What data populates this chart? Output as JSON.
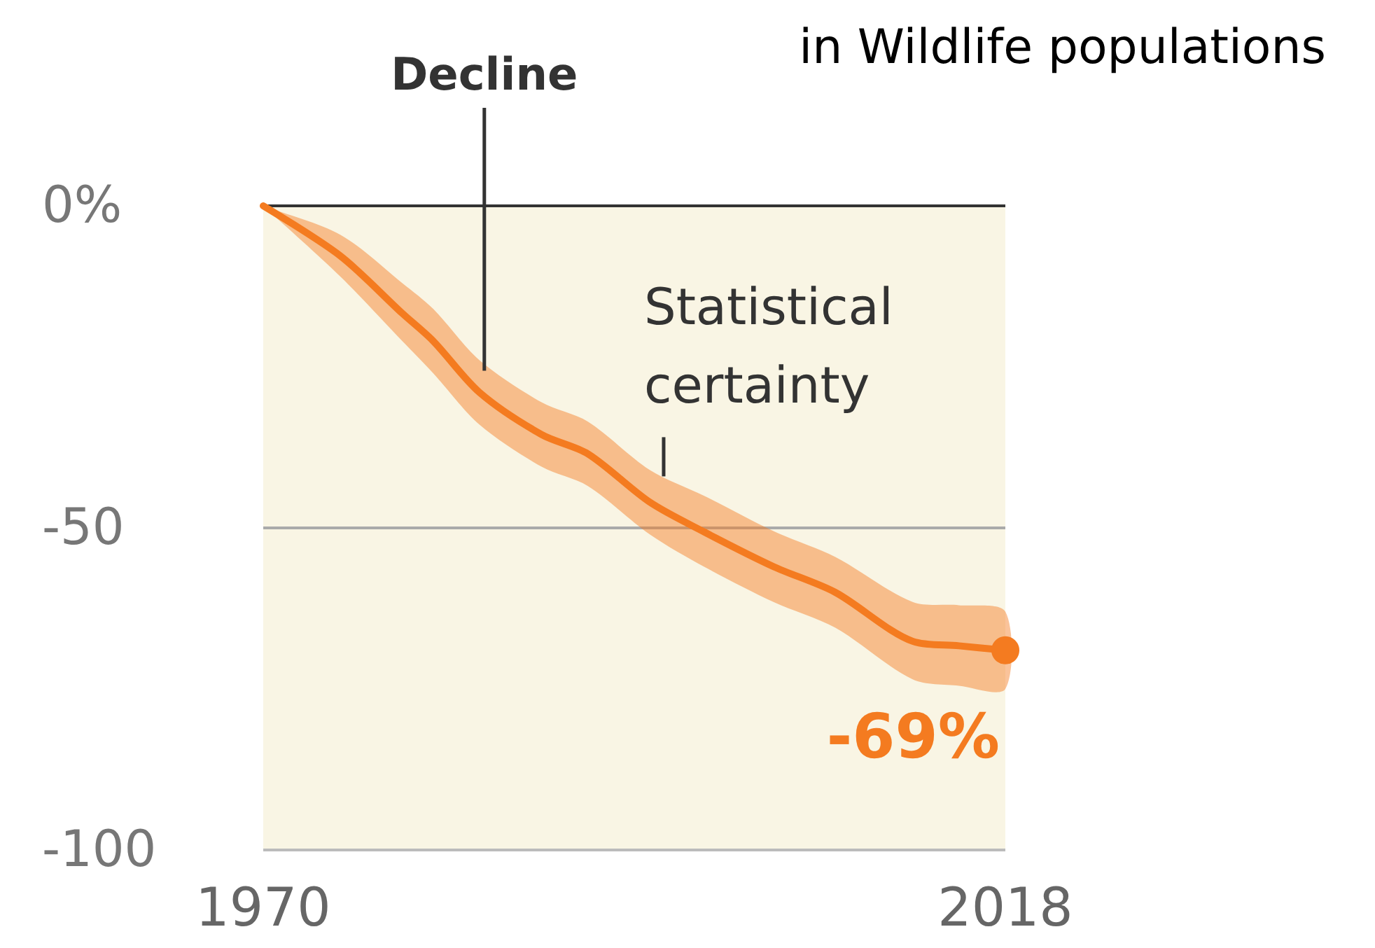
{
  "chart_data": {
    "type": "line",
    "title": "in Wildlife populations",
    "x": [
      1970,
      1975,
      1979,
      1981,
      1984,
      1988,
      1991,
      1995,
      1998.5,
      2003,
      2007,
      2012,
      2015,
      2018
    ],
    "series": [
      {
        "color": "#f47b20",
        "values": [
          0,
          -7.8,
          -16.7,
          -21,
          -29,
          -35.5,
          -38.5,
          -46,
          -50.6,
          -56,
          -60,
          -67.6,
          -68.3,
          -69
        ],
        "lower": [
          0,
          -11,
          -21,
          -26,
          -34,
          -40.5,
          -43.5,
          -51,
          -56,
          -61.5,
          -65.5,
          -73.5,
          -74.5,
          -75
        ],
        "upper": [
          0,
          -4.5,
          -12,
          -16,
          -24,
          -30.5,
          -33.5,
          -41,
          -45,
          -50.5,
          -54.5,
          -61.5,
          -62,
          -63
        ]
      }
    ],
    "xlim": [
      1970,
      2018
    ],
    "xticks": [
      1970,
      2018
    ],
    "ylim": [
      -100,
      0
    ],
    "yticks": [
      {
        "value": 0,
        "label": "0%"
      },
      -50,
      -100
    ],
    "grid": "y",
    "annotations": [
      {
        "text": "Decline",
        "x": 1984.3,
        "y": -25.6
      },
      {
        "text": "Statistical certainty",
        "x": 1995.9,
        "y": -42
      },
      {
        "text": "-69%",
        "x": 2018,
        "y": -69
      }
    ]
  }
}
